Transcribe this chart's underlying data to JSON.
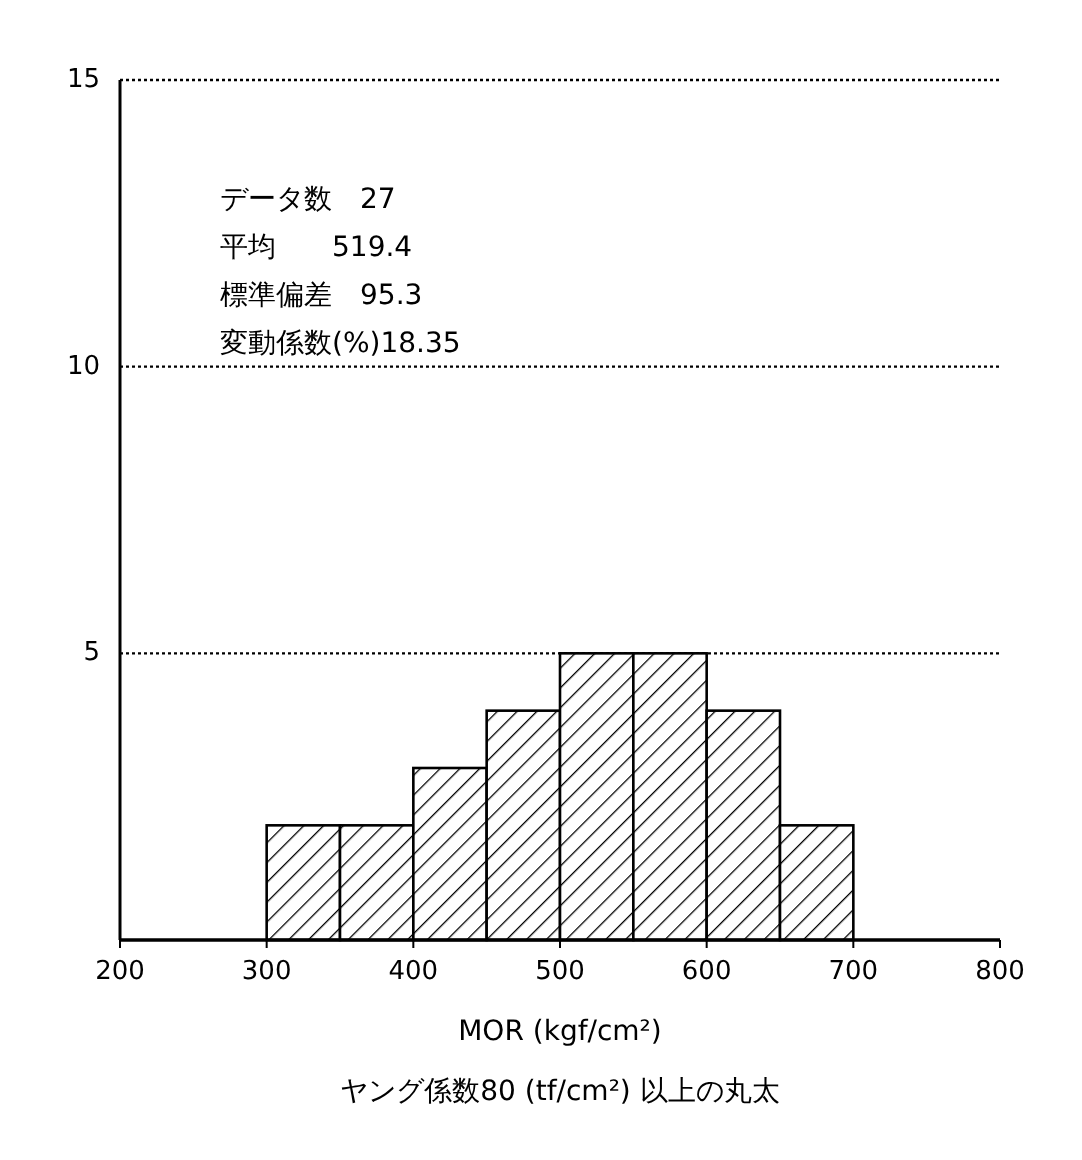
{
  "chart_data": {
    "type": "histogram",
    "bins": [
      200,
      250,
      300,
      350,
      400,
      450,
      500,
      550,
      600,
      650,
      700,
      750,
      800
    ],
    "values": [
      0,
      0,
      2,
      2,
      3,
      4,
      5,
      5,
      4,
      2,
      0,
      0
    ],
    "color": "#000000",
    "xlim": [
      200,
      800
    ],
    "xticks": [
      200,
      300,
      400,
      500,
      600,
      700,
      800
    ],
    "ylim": [
      0,
      15
    ],
    "yticks": [
      5,
      10,
      15
    ],
    "grid": "y",
    "xlabel": "MOR (kgf/cm²)",
    "annotations": [
      "データ数　27",
      "平均　　519.4",
      "標準偏差　95.3",
      "変動係数(%)18.35",
      "ヤング係数80 (tf/cm²) 以上の丸太"
    ]
  }
}
